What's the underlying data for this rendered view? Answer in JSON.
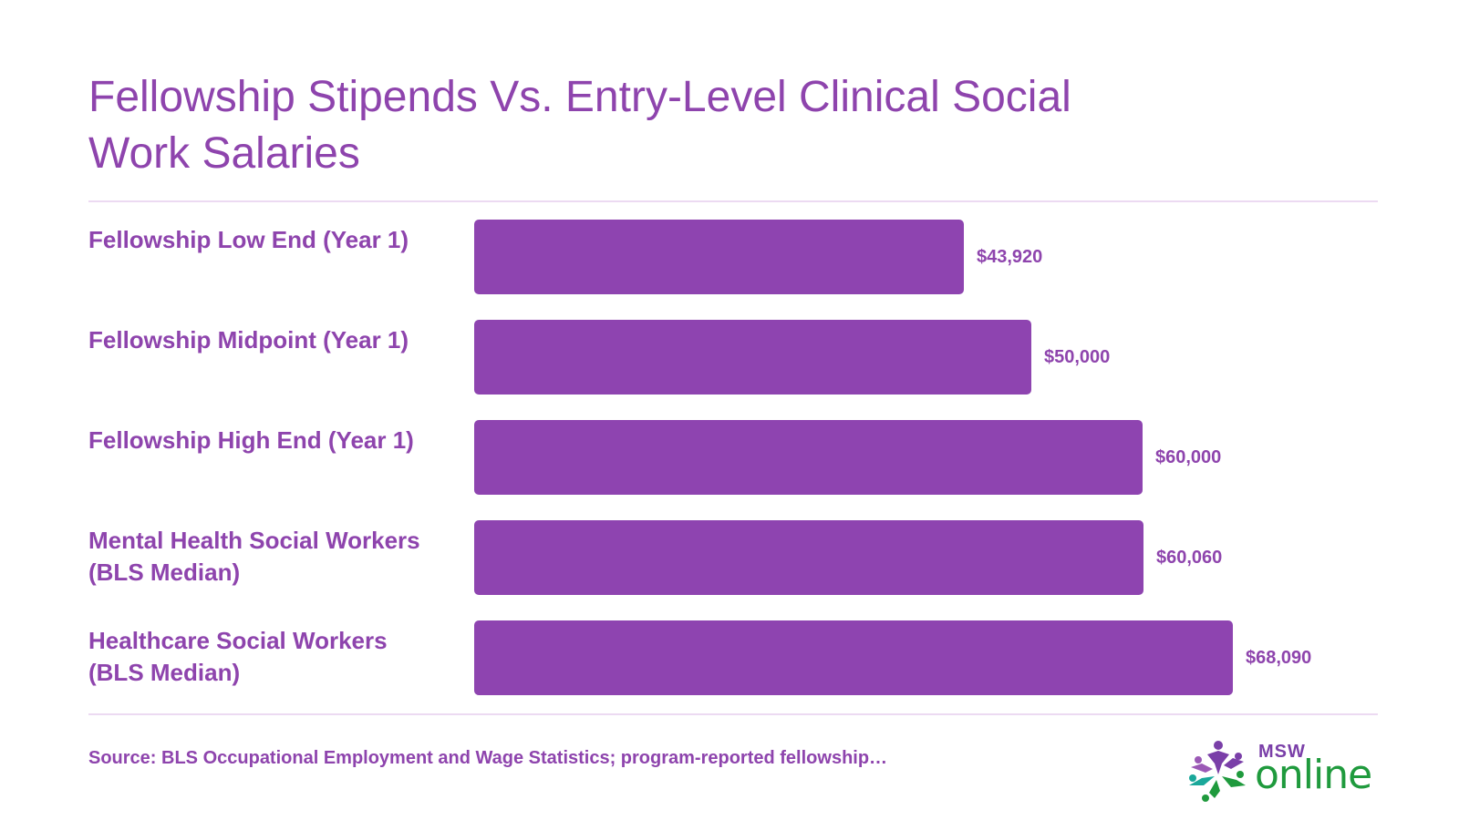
{
  "title": "Fellowship Stipends Vs. Entry-Level Clinical Social Work Salaries",
  "source": "Source: BLS Occupational Employment and Wage Statistics; program-reported fellowship…",
  "logo": {
    "top_text": "MSW",
    "bottom_text": "online"
  },
  "colors": {
    "bar": "#8e44b0",
    "text": "#8e44ad",
    "divider": "#ecdaf2",
    "logo_purple": "#7a3fa8",
    "logo_green": "#1f9a3d",
    "logo_teal": "#1aa89a"
  },
  "chart_data": {
    "type": "bar",
    "orientation": "horizontal",
    "title": "Fellowship Stipends Vs. Entry-Level Clinical Social Work Salaries",
    "categories": [
      "Fellowship Low End (Year 1)",
      "Fellowship Midpoint (Year 1)",
      "Fellowship High End (Year 1)",
      "Mental Health Social Workers (BLS Median)",
      "Healthcare Social Workers (BLS Median)"
    ],
    "values": [
      43920,
      50000,
      60000,
      60060,
      68090
    ],
    "value_labels": [
      "$43,920",
      "$50,000",
      "$60,000",
      "$60,060",
      "$68,090"
    ],
    "xlim": [
      0,
      68090
    ],
    "xlabel": "",
    "ylabel": "",
    "grid": false,
    "legend": "none"
  }
}
